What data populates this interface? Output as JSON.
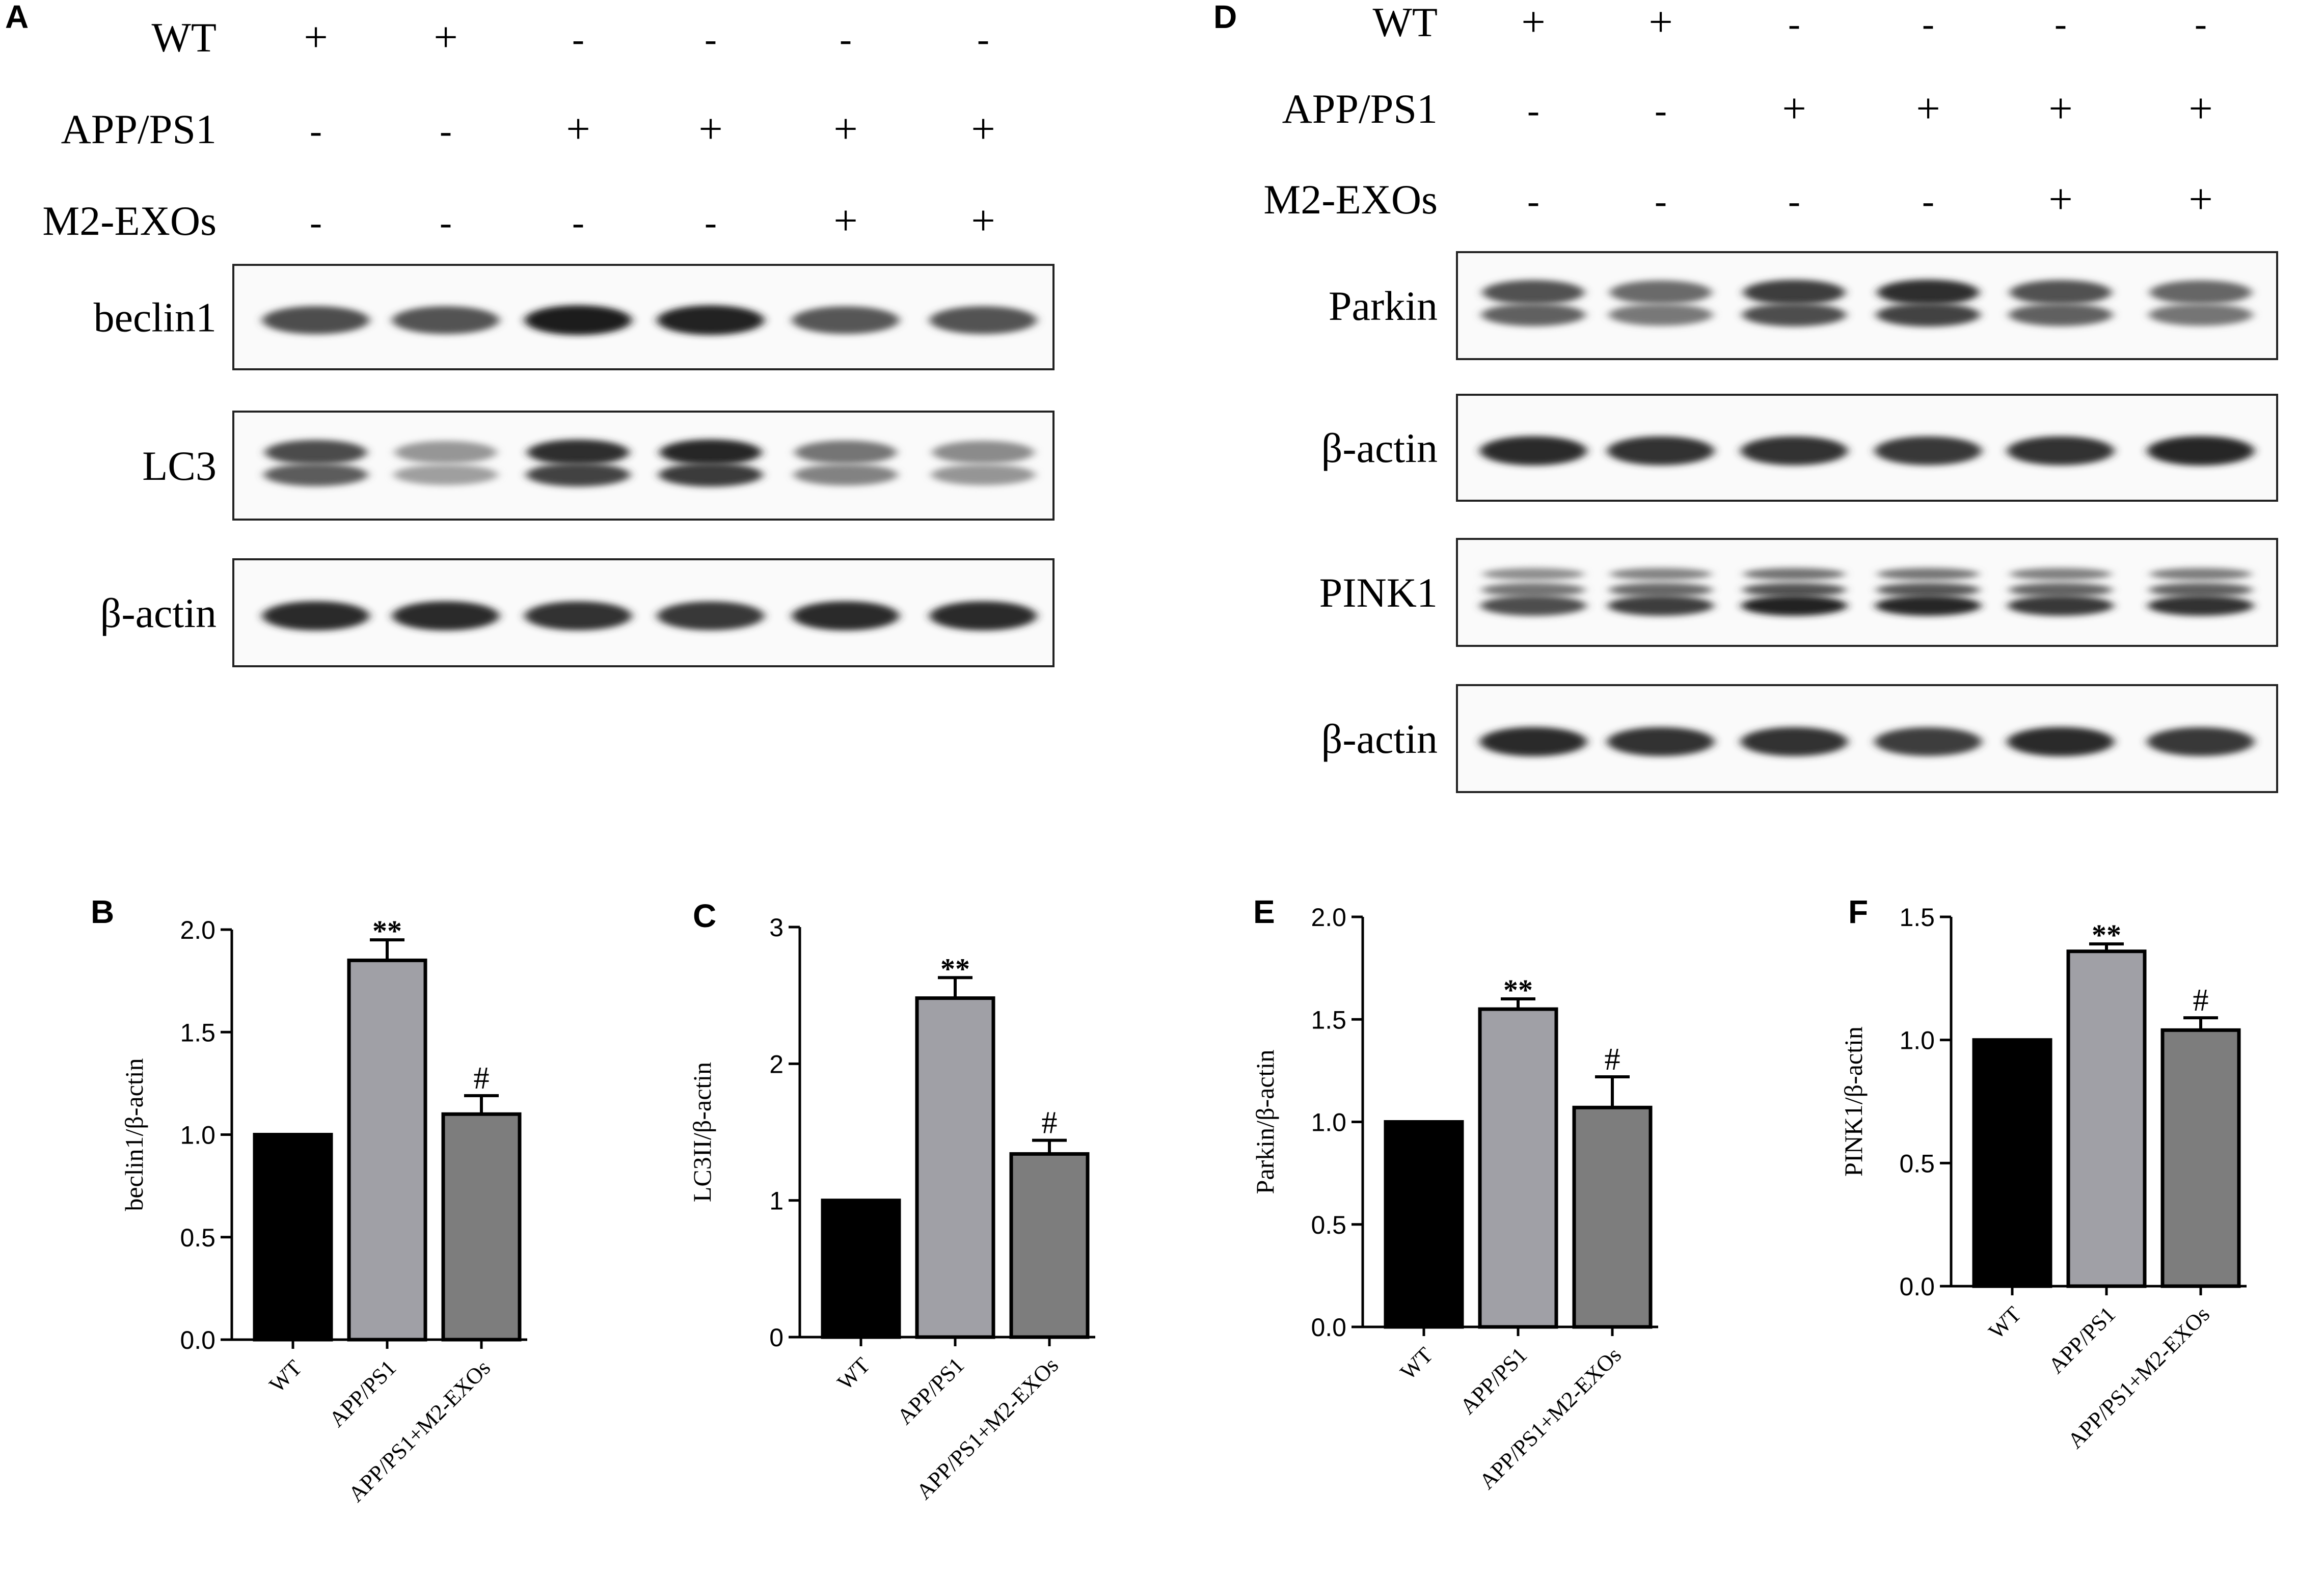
{
  "panels": {
    "A": {
      "letter": "A",
      "conditions": [
        {
          "label": "WT",
          "marks": [
            "+",
            "+",
            "-",
            "-",
            "-",
            "-"
          ]
        },
        {
          "label": "APP/PS1",
          "marks": [
            "-",
            "-",
            "+",
            "+",
            "+",
            "+"
          ]
        },
        {
          "label": "M2-EXOs",
          "marks": [
            "-",
            "-",
            "-",
            "-",
            "+",
            "+"
          ]
        }
      ],
      "blots": [
        {
          "label": "beclin1",
          "intensity": [
            0.7,
            0.68,
            0.92,
            0.9,
            0.66,
            0.68
          ],
          "bands": 1
        },
        {
          "label": "LC3",
          "intensity": [
            0.75,
            0.4,
            0.88,
            0.92,
            0.55,
            0.45
          ],
          "bands": 2
        },
        {
          "label": "β-actin",
          "intensity": [
            0.85,
            0.85,
            0.82,
            0.8,
            0.85,
            0.85
          ],
          "bands": 1
        }
      ]
    },
    "D": {
      "letter": "D",
      "conditions": [
        {
          "label": "WT",
          "marks": [
            "+",
            "+",
            "-",
            "-",
            "-",
            "-"
          ]
        },
        {
          "label": "APP/PS1",
          "marks": [
            "-",
            "-",
            "+",
            "+",
            "+",
            "+"
          ]
        },
        {
          "label": "M2-EXOs",
          "marks": [
            "-",
            "-",
            "-",
            "-",
            "+",
            "+"
          ]
        }
      ],
      "blots": [
        {
          "label": "Parkin",
          "intensity": [
            0.72,
            0.6,
            0.82,
            0.88,
            0.72,
            0.62
          ],
          "bands": 2
        },
        {
          "label": "β-actin",
          "intensity": [
            0.85,
            0.82,
            0.82,
            0.8,
            0.82,
            0.88
          ],
          "bands": 1
        },
        {
          "label": "PINK1",
          "intensity": [
            0.7,
            0.78,
            0.9,
            0.88,
            0.8,
            0.82
          ],
          "bands": 3
        },
        {
          "label": "β-actin",
          "intensity": [
            0.85,
            0.82,
            0.82,
            0.78,
            0.85,
            0.8
          ],
          "bands": 1
        }
      ]
    }
  },
  "chart_data": [
    {
      "letter": "B",
      "type": "bar",
      "categories": [
        "WT",
        "APP/PS1",
        "APP/PS1+M2-EXOs"
      ],
      "values": [
        1.0,
        1.85,
        1.1
      ],
      "errors": [
        0,
        0.1,
        0.09
      ],
      "significance": [
        "",
        "**",
        "#"
      ],
      "ylabel": "beclin1/β-actin",
      "ylim": [
        0,
        2.0
      ],
      "yticks": [
        "0.0",
        "0.5",
        "1.0",
        "1.5",
        "2.0"
      ],
      "bar_colors": [
        "#000000",
        "#a0a0a6",
        "#7d7d7d"
      ]
    },
    {
      "letter": "C",
      "type": "bar",
      "categories": [
        "WT",
        "APP/PS1",
        "APP/PS1+M2-EXOs"
      ],
      "values": [
        1.0,
        2.48,
        1.34
      ],
      "errors": [
        0,
        0.15,
        0.1
      ],
      "significance": [
        "",
        "**",
        "#"
      ],
      "ylabel": "LC3II/β-actin",
      "ylim": [
        0,
        3
      ],
      "yticks": [
        "0",
        "1",
        "2",
        "3"
      ],
      "bar_colors": [
        "#000000",
        "#a0a0a6",
        "#7d7d7d"
      ]
    },
    {
      "letter": "E",
      "type": "bar",
      "categories": [
        "WT",
        "APP/PS1",
        "APP/PS1+M2-EXOs"
      ],
      "values": [
        1.0,
        1.55,
        1.07
      ],
      "errors": [
        0,
        0.05,
        0.15
      ],
      "significance": [
        "",
        "**",
        "#"
      ],
      "ylabel": "Parkin/β-actin",
      "ylim": [
        0,
        2.0
      ],
      "yticks": [
        "0.0",
        "0.5",
        "1.0",
        "1.5",
        "2.0"
      ],
      "bar_colors": [
        "#000000",
        "#a0a0a6",
        "#7d7d7d"
      ]
    },
    {
      "letter": "F",
      "type": "bar",
      "categories": [
        "WT",
        "APP/PS1",
        "APP/PS1+M2-EXOs"
      ],
      "values": [
        1.0,
        1.36,
        1.04
      ],
      "errors": [
        0,
        0.03,
        0.05
      ],
      "significance": [
        "",
        "**",
        "#"
      ],
      "ylabel": "PINK1/β-actin",
      "ylim": [
        0,
        1.5
      ],
      "yticks": [
        "0.0",
        "0.5",
        "1.0",
        "1.5"
      ],
      "bar_colors": [
        "#000000",
        "#a0a0a6",
        "#7d7d7d"
      ]
    }
  ]
}
